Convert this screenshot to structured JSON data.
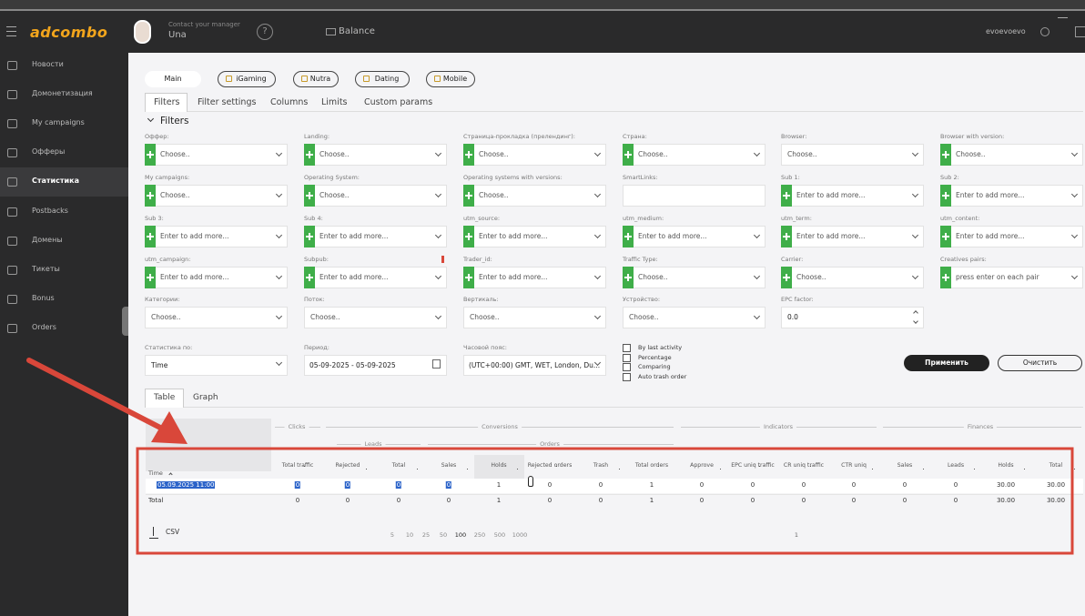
{
  "header": {
    "logo": "adcombo",
    "manager_label": "Contact your manager",
    "manager_name": "Una",
    "help": "?",
    "balance": "Balance",
    "user": "evoevoevo"
  },
  "sidebar": [
    "Новости",
    "Домонетизация",
    "My campaigns",
    "Офферы",
    "Статистика",
    "Postbacks",
    "Домены",
    "Тикеты",
    "Bonus",
    "Orders"
  ],
  "verticals": [
    "Main",
    "iGaming",
    "Nutra",
    "Dating",
    "Mobile"
  ],
  "filter_tabs": [
    "Filters",
    "Filter settings",
    "Columns",
    "Limits",
    "Custom params"
  ],
  "filters_title": "Filters",
  "filters": [
    {
      "label": "Оффер:",
      "placeholder": "Choose..",
      "plus": true
    },
    {
      "label": "Landing:",
      "placeholder": "Choose..",
      "plus": true
    },
    {
      "label": "Страница-прокладка (прелендинг):",
      "placeholder": "Choose..",
      "plus": true
    },
    {
      "label": "Страна:",
      "placeholder": "Choose..",
      "plus": true
    },
    {
      "label": "Browser:",
      "placeholder": "Choose..",
      "plus": false
    },
    {
      "label": "Browser with version:",
      "placeholder": "Choose..",
      "plus": true
    },
    {
      "label": "My campaigns:",
      "placeholder": "Choose..",
      "plus": true
    },
    {
      "label": "Operating System:",
      "placeholder": "Choose..",
      "plus": true
    },
    {
      "label": "Operating systems with versions:",
      "placeholder": "Choose..",
      "plus": true
    },
    {
      "label": "SmartLinks:",
      "plus": false,
      "control": "text"
    },
    {
      "label": "Sub 1:",
      "placeholder": "Enter to add more...",
      "plus": true
    },
    {
      "label": "Sub 2:",
      "placeholder": "Enter to add more...",
      "plus": true
    },
    {
      "label": "Sub 3:",
      "placeholder": "Enter to add more...",
      "plus": true
    },
    {
      "label": "Sub 4:",
      "placeholder": "Enter to add more...",
      "plus": true
    },
    {
      "label": "utm_source:",
      "placeholder": "Enter to add more...",
      "plus": true
    },
    {
      "label": "utm_medium:",
      "placeholder": "Enter to add more...",
      "plus": true
    },
    {
      "label": "utm_term:",
      "placeholder": "Enter to add more...",
      "plus": true
    },
    {
      "label": "utm_content:",
      "placeholder": "Enter to add more...",
      "plus": true
    },
    {
      "label": "utm_campaign:",
      "placeholder": "Enter to add more...",
      "plus": true
    },
    {
      "label": "Subpub:",
      "placeholder": "Enter to add more...",
      "plus": true,
      "info": true
    },
    {
      "label": "Trader_id:",
      "placeholder": "Enter to add more...",
      "plus": true
    },
    {
      "label": "Traffic Type:",
      "placeholder": "Choose..",
      "plus": true
    },
    {
      "label": "Carrier:",
      "placeholder": "Choose..",
      "plus": true
    },
    {
      "label": "Creatives pairs:",
      "placeholder": "press enter on each pair",
      "plus": true
    },
    {
      "label": "Категории:",
      "placeholder": "Choose..",
      "plus": false
    },
    {
      "label": "Поток:",
      "placeholder": "Choose..",
      "plus": false
    },
    {
      "label": "Вертикаль:",
      "placeholder": "Choose..",
      "plus": false
    },
    {
      "label": "Устройство:",
      "placeholder": "Choose..",
      "plus": false
    },
    {
      "label": "EPC factor:",
      "placeholder": "0.0",
      "plus": false,
      "control": "number"
    }
  ],
  "stats_controls": [
    {
      "label": "Статистика по:",
      "value": "Time"
    },
    {
      "label": "Период:",
      "value": "05-09-2025 - 05-09-2025"
    },
    {
      "label": "Часовой пояс:",
      "value": "(UTC+00:00) GMT, WET, London, Du..."
    }
  ],
  "checkboxes": [
    "By last activity",
    "Percentage",
    "Comparing",
    "Auto trash order"
  ],
  "buttons": [
    "Применить",
    "Очистить"
  ],
  "view_tabs": [
    "Table",
    "Graph"
  ],
  "table": {
    "groups": [
      "Clicks",
      "Conversions",
      "Leads",
      "Orders",
      "Indicators",
      "Finances"
    ],
    "columns": [
      "Time",
      "Total traffic",
      "Rejected",
      "Total",
      "Sales",
      "Holds",
      "Rejected orders",
      "Trash",
      "Total orders",
      "Approve",
      "EPC uniq traffic",
      "CR uniq traffic",
      "CTR uniq",
      "Sales",
      "Leads",
      "Holds",
      "Total"
    ],
    "rows": [
      [
        "05.09.2025 11:00",
        0,
        0,
        0,
        0,
        1,
        0,
        0,
        1,
        0,
        0,
        0,
        0,
        0,
        0,
        "30.00",
        "30.00"
      ],
      [
        "Total",
        0,
        0,
        0,
        0,
        1,
        0,
        0,
        1,
        0,
        0,
        0,
        0,
        0,
        0,
        "30.00",
        "30.00"
      ]
    ]
  },
  "footer": {
    "csv": "CSV",
    "page_sizes": [
      5,
      10,
      25,
      50,
      100,
      250,
      500,
      1000
    ],
    "pages": [
      1
    ]
  }
}
